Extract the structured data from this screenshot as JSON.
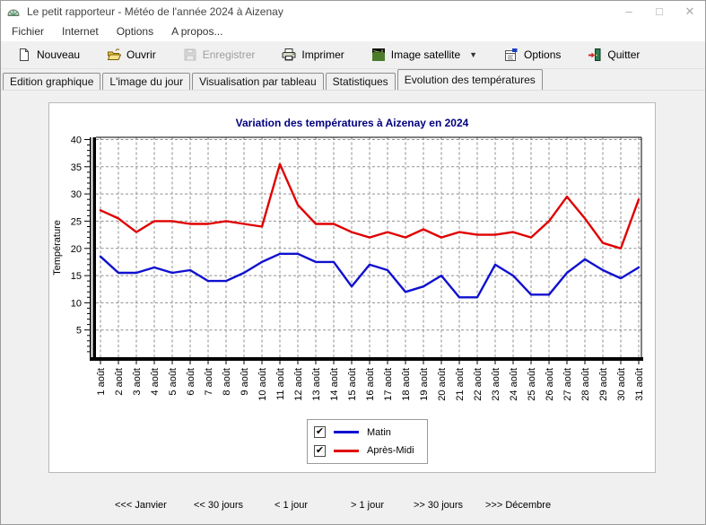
{
  "window": {
    "title": "Le petit rapporteur - Météo de l'année 2024 à Aizenay",
    "controls": {
      "minimize": "–",
      "maximize": "□",
      "close": "✕"
    }
  },
  "menu_bar": {
    "items": [
      "Fichier",
      "Internet",
      "Options",
      "A propos..."
    ]
  },
  "toolbar": {
    "buttons": [
      {
        "label": "Nouveau",
        "icon": "new-document-icon",
        "enabled": true,
        "has_dropdown": false
      },
      {
        "label": "Ouvrir",
        "icon": "open-folder-icon",
        "enabled": true,
        "has_dropdown": false
      },
      {
        "label": "Enregistrer",
        "icon": "save-icon",
        "enabled": false,
        "has_dropdown": false
      },
      {
        "label": "Imprimer",
        "icon": "printer-icon",
        "enabled": true,
        "has_dropdown": false
      },
      {
        "label": "Image satellite",
        "icon": "satellite-image-icon",
        "enabled": true,
        "has_dropdown": true
      },
      {
        "label": "Options",
        "icon": "options-icon",
        "enabled": true,
        "has_dropdown": false
      },
      {
        "label": "Quitter",
        "icon": "exit-door-icon",
        "enabled": true,
        "has_dropdown": false
      }
    ]
  },
  "tab_bar": {
    "tabs": [
      {
        "label": "Edition graphique",
        "active": false
      },
      {
        "label": "L'image du jour",
        "active": false
      },
      {
        "label": "Visualisation par tableau",
        "active": false
      },
      {
        "label": "Statistiques",
        "active": false
      },
      {
        "label": "Evolution des températures",
        "active": true
      }
    ]
  },
  "chart_data": {
    "type": "line",
    "title": "Variation des températures à Aizenay en 2024",
    "title_color": "#000080",
    "xlabel": "",
    "ylabel": "Température",
    "ylim": [
      0,
      40.5
    ],
    "y_ticks": [
      5,
      10,
      15,
      20,
      25,
      30,
      35,
      40
    ],
    "grid": true,
    "legend_position": "bottom",
    "categories": [
      "1 août",
      "2 août",
      "3 août",
      "4 août",
      "5 août",
      "6 août",
      "7 août",
      "8 août",
      "9 août",
      "10 août",
      "11 août",
      "12 août",
      "13 août",
      "14 août",
      "15 août",
      "16 août",
      "17 août",
      "18 août",
      "19 août",
      "20 août",
      "21 août",
      "22 août",
      "23 août",
      "24 août",
      "25 août",
      "26 août",
      "27 août",
      "28 août",
      "29 août",
      "30 août",
      "31 août"
    ],
    "series": [
      {
        "name": "Matin",
        "color": "#1010d0",
        "values": [
          18.5,
          15.5,
          15.5,
          16.5,
          15.5,
          16,
          14,
          14,
          15.5,
          17.5,
          19,
          19,
          17.5,
          17.5,
          13,
          17,
          16,
          12,
          13,
          15,
          11,
          11,
          17,
          15,
          11.5,
          11.5,
          15.5,
          18,
          16,
          14.5,
          16.5
        ]
      },
      {
        "name": "Après-Midi",
        "color": "#e00000",
        "values": [
          27,
          25.5,
          23,
          25,
          25,
          24.5,
          24.5,
          25,
          24.5,
          24,
          35.5,
          28,
          24.5,
          24.5,
          23,
          22,
          23,
          22,
          23.5,
          22,
          23,
          22.5,
          22.5,
          23,
          22,
          25,
          29.5,
          25.5,
          21,
          20,
          29
        ]
      }
    ]
  },
  "legend": {
    "items": [
      {
        "label": "Matin",
        "checked": true,
        "check_glyph": "✔",
        "color": "#1010d0"
      },
      {
        "label": "Après-Midi",
        "checked": true,
        "check_glyph": "✔",
        "color": "#e00000"
      }
    ]
  },
  "nav_bar": {
    "items": [
      "<<< Janvier",
      "<< 30 jours",
      "< 1 jour",
      "> 1 jour",
      ">> 30 jours",
      ">>> Décembre"
    ]
  }
}
